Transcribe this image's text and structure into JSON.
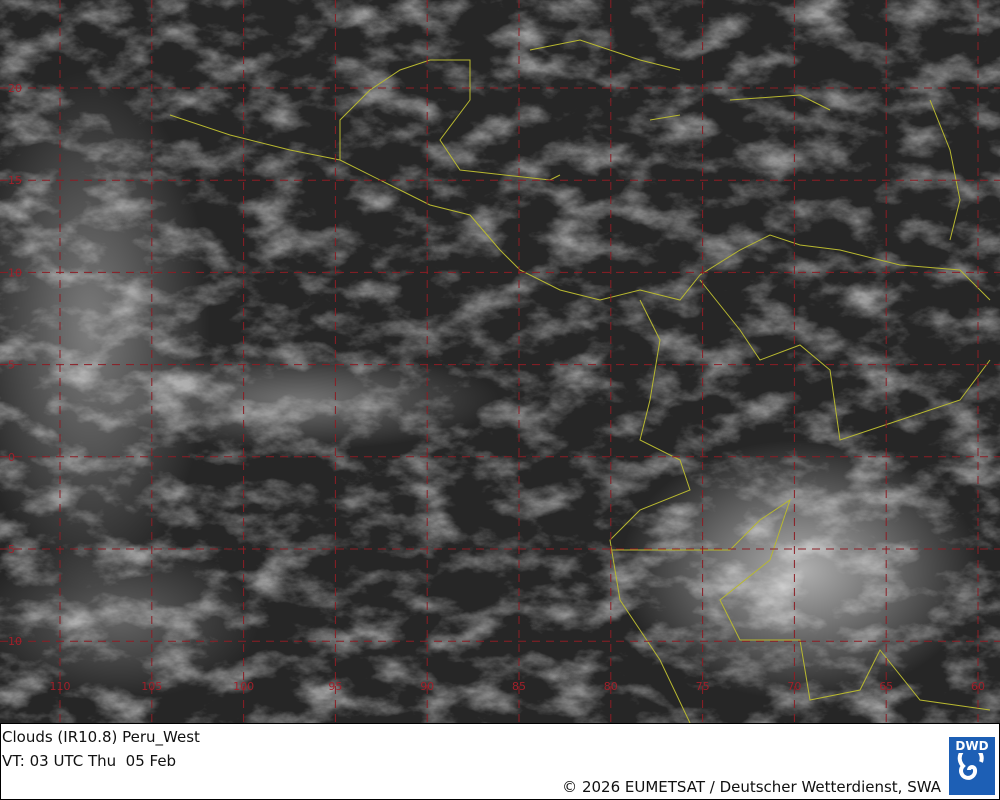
{
  "map": {
    "product": "Clouds (IR10.8) Peru_West",
    "latitude_labels": [
      "20",
      "15",
      "10",
      "5",
      "0",
      "5",
      "10"
    ],
    "longitude_labels": [
      "110",
      "105",
      "100",
      "95",
      "90",
      "85",
      "80",
      "75",
      "70",
      "65",
      "60"
    ],
    "grid_color": "#a0202a",
    "coast_color": "#b8b830"
  },
  "footer": {
    "title": "Clouds (IR10.8) Peru_West",
    "valid_time": "VT: 03 UTC Thu  05 Feb",
    "copyright": "© 2026 EUMETSAT / Deutscher Wetterdienst, SWA",
    "logo_text": "DWD"
  }
}
